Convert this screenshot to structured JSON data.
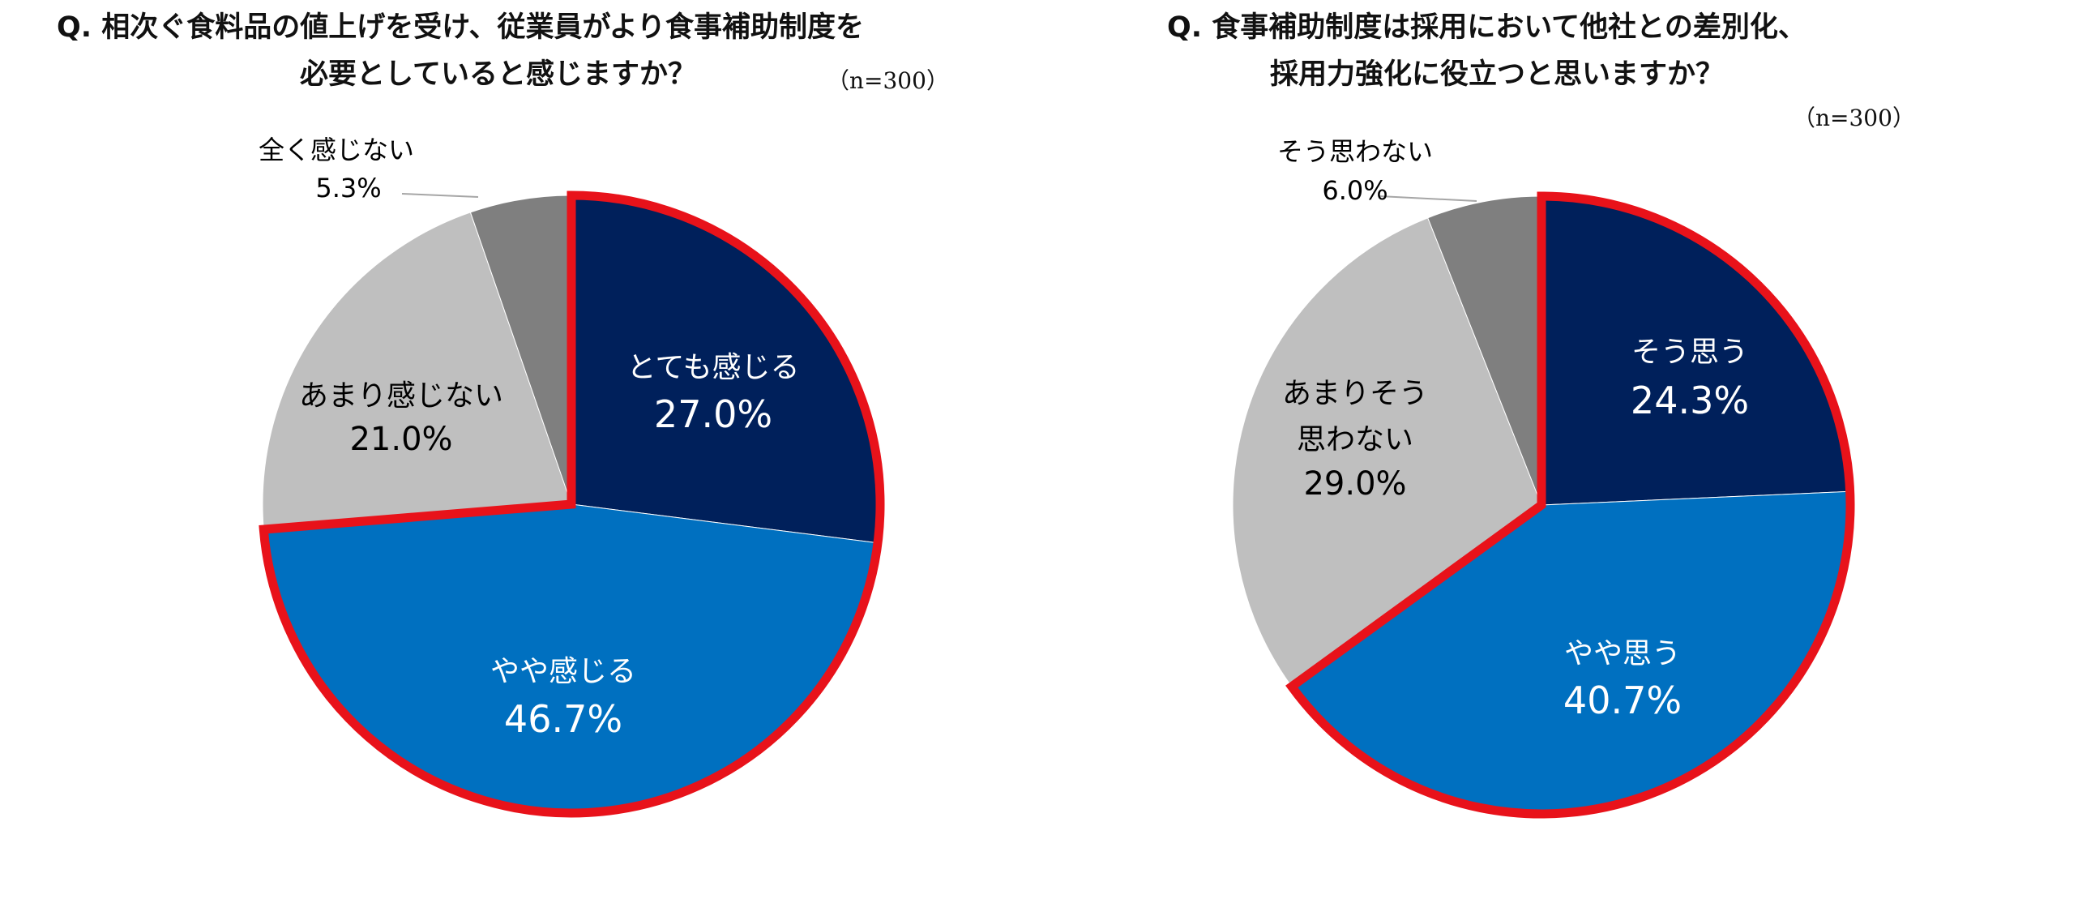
{
  "colors": {
    "dark_navy": "#00205B",
    "blue": "#0070C0",
    "light_gray": "#BFBFBF",
    "gray": "#7F7F7F",
    "highlight_outline": "#E8121A",
    "white": "#FFFFFF",
    "black": "#000000"
  },
  "chart_data": [
    {
      "type": "pie",
      "title_line1": "Q. 相次ぐ食料品の値上げを受け、従業員がより食事補助制度を",
      "title_line2": "必要としていると感じますか？",
      "n_label": "（n=300）",
      "slices": [
        {
          "label": "とても感じる",
          "value": 27.0,
          "value_label": "27.0%",
          "color": "#00205B",
          "text_color": "#FFFFFF",
          "highlighted": true
        },
        {
          "label": "やや感じる",
          "value": 46.7,
          "value_label": "46.7%",
          "color": "#0070C0",
          "text_color": "#FFFFFF",
          "highlighted": true
        },
        {
          "label": "あまり感じない",
          "value": 21.0,
          "value_label": "21.0%",
          "color": "#BFBFBF",
          "text_color": "#000000",
          "highlighted": false
        },
        {
          "label": "全く感じない",
          "value": 5.3,
          "value_label": "5.3%",
          "color": "#7F7F7F",
          "text_color": "#000000",
          "highlighted": false
        }
      ]
    },
    {
      "type": "pie",
      "title_line1": "Q. 食事補助制度は採用において他社との差別化、",
      "title_line2": "採用力強化に役立つと思いますか？",
      "n_label": "（n=300）",
      "slices": [
        {
          "label": "そう思う",
          "value": 24.3,
          "value_label": "24.3%",
          "color": "#00205B",
          "text_color": "#FFFFFF",
          "highlighted": true
        },
        {
          "label": "やや思う",
          "value": 40.7,
          "value_label": "40.7%",
          "color": "#0070C0",
          "text_color": "#FFFFFF",
          "highlighted": true
        },
        {
          "label": "あまりそう思わない",
          "value": 29.0,
          "value_label": "29.0%",
          "color": "#BFBFBF",
          "text_color": "#000000",
          "highlighted": false
        },
        {
          "label": "そう思わない",
          "value": 6.0,
          "value_label": "6.0%",
          "color": "#7F7F7F",
          "text_color": "#000000",
          "highlighted": false
        }
      ]
    }
  ]
}
